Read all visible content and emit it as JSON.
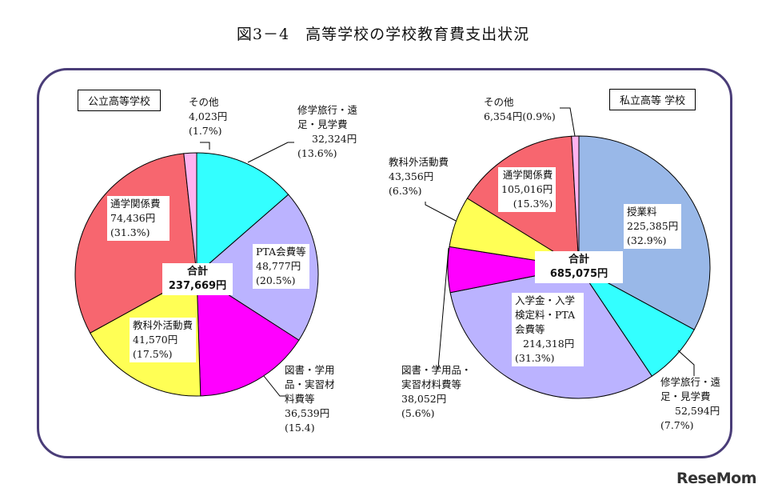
{
  "title": "図3－4　高等学校の学校教育費支出状況",
  "logo": "ReseMom",
  "chart_data": [
    {
      "type": "pie",
      "title": "公立高等学校",
      "total_label": "合計",
      "total": "237,669円",
      "slices": [
        {
          "name": "修学旅行・遠足・見学費",
          "amount": "32,324円",
          "pct_label": "(13.6%)",
          "value": 13.6,
          "color": "#33ffff"
        },
        {
          "name": "PTA会費等",
          "amount": "48,777円",
          "pct_label": "(20.5%)",
          "value": 20.5,
          "color": "#bbb3ff"
        },
        {
          "name": "図書・学用品・実習材料費等",
          "amount": "36,539円",
          "pct_label": "(15.4)",
          "value": 15.4,
          "color": "#ff00ff"
        },
        {
          "name": "教科外活動費",
          "amount": "41,570円",
          "pct_label": "(17.5%)",
          "value": 17.5,
          "color": "#ffff55"
        },
        {
          "name": "通学関係費",
          "amount": "74,436円",
          "pct_label": "(31.3%)",
          "value": 31.3,
          "color": "#f7666f"
        },
        {
          "name": "その他",
          "amount": "4,023円",
          "pct_label": "(1.7%)",
          "value": 1.7,
          "color": "#ffb3f0"
        }
      ]
    },
    {
      "type": "pie",
      "title": "私立高等 学校",
      "total_label": "合計",
      "total": "685,075円",
      "slices": [
        {
          "name": "授業料",
          "amount": "225,385円",
          "pct_label": "(32.9%)",
          "value": 32.9,
          "color": "#99b8e8"
        },
        {
          "name": "修学旅行・遠足・見学費",
          "amount": "52,594円",
          "pct_label": "(7.7%)",
          "value": 7.7,
          "color": "#33ffff"
        },
        {
          "name": "入学金・入学検定料・PTA会費等",
          "amount": "214,318円",
          "pct_label": "(31.3%)",
          "value": 31.3,
          "color": "#bbb3ff"
        },
        {
          "name": "図書・学用品・実習材料費等",
          "amount": "38,052円",
          "pct_label": "(5.6%)",
          "value": 5.6,
          "color": "#ff00ff"
        },
        {
          "name": "教科外活動費",
          "amount": "43,356円",
          "pct_label": "(6.3%)",
          "value": 6.3,
          "color": "#ffff55"
        },
        {
          "name": "通学関係費",
          "amount": "105,016円",
          "pct_label": "(15.3%)",
          "value": 15.3,
          "color": "#f7666f"
        },
        {
          "name": "その他",
          "amount": "6,354円",
          "pct_label": "(0.9%)",
          "value": 0.9,
          "color": "#ffb3f0"
        }
      ]
    }
  ]
}
